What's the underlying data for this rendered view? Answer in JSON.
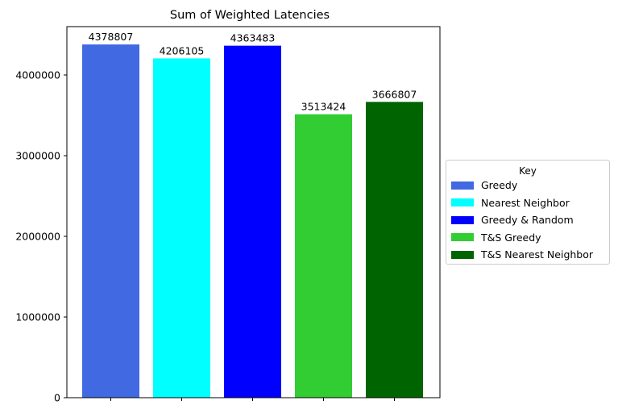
{
  "chart_data": {
    "type": "bar",
    "title": "Sum of Weighted Latencies",
    "xlabel": "",
    "ylabel": "",
    "categories": [
      "Greedy",
      "Nearest Neighbor",
      "Greedy & Random",
      "T&S Greedy",
      "T&S Nearest Neighbor"
    ],
    "values": [
      4378807,
      4206105,
      4363483,
      3513424,
      3666807
    ],
    "value_labels": [
      "4378807",
      "4206105",
      "4363483",
      "3513424",
      "3666807"
    ],
    "colors": [
      "#4169e1",
      "#00ffff",
      "#0000ff",
      "#32cd32",
      "#006400"
    ],
    "ylim": [
      0,
      4600000
    ],
    "yticks": [
      0,
      1000000,
      2000000,
      3000000,
      4000000
    ],
    "ytick_labels": [
      "0",
      "1000000",
      "2000000",
      "3000000",
      "4000000"
    ],
    "grid": false,
    "legend": {
      "title": "Key",
      "placement": "outside-right",
      "entries": [
        "Greedy",
        "Nearest Neighbor",
        "Greedy & Random",
        "T&S Greedy",
        "T&S Nearest Neighbor"
      ]
    }
  }
}
